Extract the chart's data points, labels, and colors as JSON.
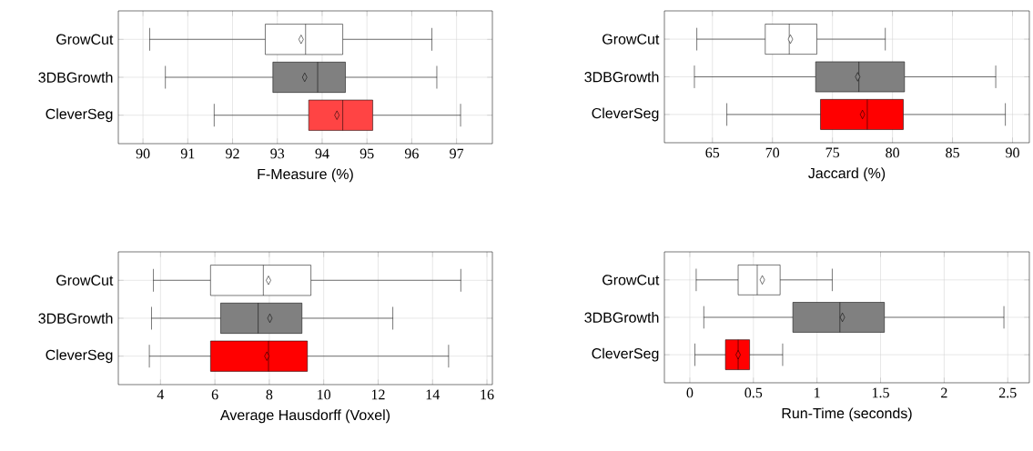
{
  "chart_data": [
    {
      "type": "box",
      "orientation": "horizontal",
      "categories": [
        "GrowCut",
        "3DBGrowth",
        "CleverSeg"
      ],
      "xlabel": "F-Measure (%)",
      "xlim": [
        89.45,
        97.8
      ],
      "xticks": [
        90,
        91,
        92,
        93,
        94,
        95,
        96,
        97
      ],
      "grid": true,
      "marker": "diamond",
      "colors": [
        "#ffffff",
        "#808080",
        "#ff4444"
      ],
      "boxes": [
        {
          "low": 90.15,
          "q1": 92.73,
          "median": 93.63,
          "q3": 94.46,
          "high": 96.45,
          "mean": 93.53
        },
        {
          "low": 90.5,
          "q1": 92.9,
          "median": 93.9,
          "q3": 94.52,
          "high": 96.56,
          "mean": 93.61
        },
        {
          "low": 91.59,
          "q1": 93.7,
          "median": 94.46,
          "q3": 95.13,
          "high": 97.09,
          "mean": 94.33
        }
      ]
    },
    {
      "type": "box",
      "orientation": "horizontal",
      "categories": [
        "GrowCut",
        "3DBGrowth",
        "CleverSeg"
      ],
      "xlabel": "Jaccard (%)",
      "xlim": [
        61,
        91.4
      ],
      "xticks": [
        65,
        70,
        75,
        80,
        85,
        90
      ],
      "grid": true,
      "marker": "diamond",
      "colors": [
        "#ffffff",
        "#808080",
        "#ff0000"
      ],
      "boxes": [
        {
          "low": 63.7,
          "q1": 69.4,
          "median": 71.4,
          "q3": 73.7,
          "high": 79.4,
          "mean": 71.5
        },
        {
          "low": 63.5,
          "q1": 73.6,
          "median": 77.2,
          "q3": 81.0,
          "high": 88.6,
          "mean": 77.1
        },
        {
          "low": 66.2,
          "q1": 74.0,
          "median": 77.9,
          "q3": 80.9,
          "high": 89.4,
          "mean": 77.5
        }
      ]
    },
    {
      "type": "box",
      "orientation": "horizontal",
      "categories": [
        "GrowCut",
        "3DBGrowth",
        "CleverSeg"
      ],
      "xlabel": "Average Hausdorff (Voxel)",
      "xlim": [
        2.45,
        16.2
      ],
      "xticks": [
        4,
        6,
        8,
        10,
        12,
        14,
        16
      ],
      "grid": true,
      "marker": "diamond",
      "colors": [
        "#ffffff",
        "#808080",
        "#ff0000"
      ],
      "boxes": [
        {
          "low": 3.74,
          "q1": 5.84,
          "median": 7.78,
          "q3": 9.53,
          "high": 15.04,
          "mean": 7.97
        },
        {
          "low": 3.67,
          "q1": 6.21,
          "median": 7.59,
          "q3": 9.2,
          "high": 12.54,
          "mean": 8.02
        },
        {
          "low": 3.59,
          "q1": 5.84,
          "median": 7.97,
          "q3": 9.4,
          "high": 14.59,
          "mean": 7.91
        }
      ]
    },
    {
      "type": "box",
      "orientation": "horizontal",
      "categories": [
        "GrowCut",
        "3DBGrowth",
        "CleverSeg"
      ],
      "xlabel": "Run-Time (seconds)",
      "xlim": [
        -0.2,
        2.67
      ],
      "xticks": [
        0,
        0.5,
        1,
        1.5,
        2,
        2.5
      ],
      "grid": true,
      "marker": "diamond",
      "colors": [
        "#ffffff",
        "#808080",
        "#ff0000"
      ],
      "boxes": [
        {
          "low": 0.05,
          "q1": 0.38,
          "median": 0.53,
          "q3": 0.71,
          "high": 1.12,
          "mean": 0.57
        },
        {
          "low": 0.11,
          "q1": 0.81,
          "median": 1.18,
          "q3": 1.53,
          "high": 2.47,
          "mean": 1.2
        },
        {
          "low": 0.04,
          "q1": 0.28,
          "median": 0.38,
          "q3": 0.47,
          "high": 0.73,
          "mean": 0.38
        }
      ]
    }
  ]
}
